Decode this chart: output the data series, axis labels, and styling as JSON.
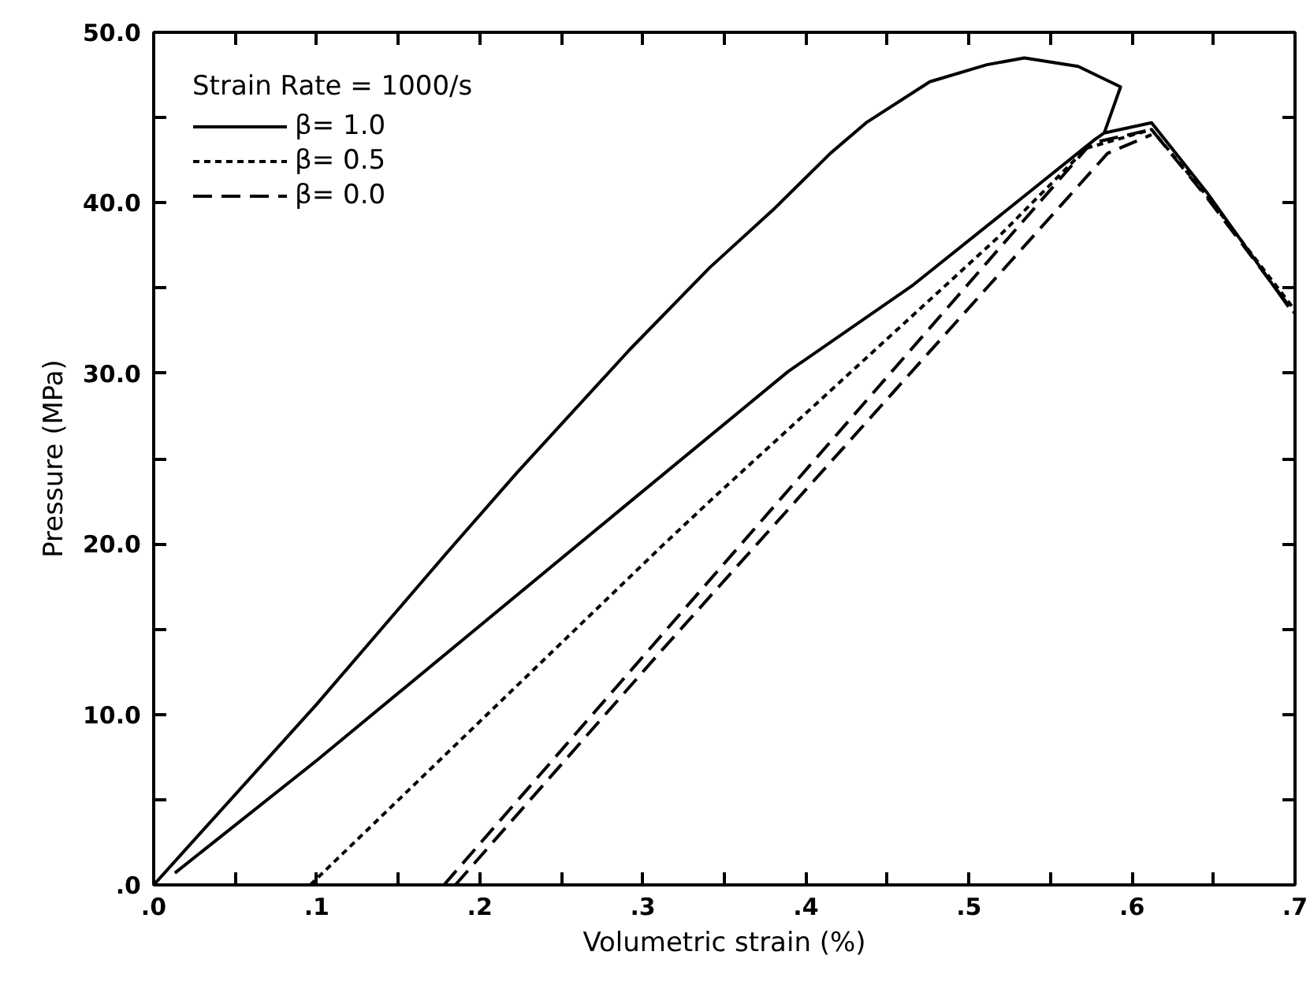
{
  "chart_data": {
    "type": "line",
    "xlabel": "Volumetric strain (%)",
    "ylabel": "Pressure (MPa)",
    "legend_title": "Strain Rate = 1000/s",
    "legend": "top left",
    "grid": false,
    "marker": "none",
    "xlim": [
      0,
      0.7
    ],
    "ylim": [
      0,
      50
    ],
    "xticks": [
      {
        "value": 0,
        "label": ".0"
      },
      {
        "value": 0.05,
        "label": null
      },
      {
        "value": 0.1,
        "label": ".1"
      },
      {
        "value": 0.15,
        "label": null
      },
      {
        "value": 0.2,
        "label": ".2"
      },
      {
        "value": 0.25,
        "label": null
      },
      {
        "value": 0.3,
        "label": ".3"
      },
      {
        "value": 0.35,
        "label": null
      },
      {
        "value": 0.4,
        "label": ".4"
      },
      {
        "value": 0.45,
        "label": null
      },
      {
        "value": 0.5,
        "label": ".5"
      },
      {
        "value": 0.55,
        "label": null
      },
      {
        "value": 0.6,
        "label": ".6"
      },
      {
        "value": 0.65,
        "label": null
      },
      {
        "value": 0.7,
        "label": ".7"
      }
    ],
    "yticks": [
      {
        "value": 0,
        "label": ".0"
      },
      {
        "value": 5,
        "label": null
      },
      {
        "value": 10,
        "label": "10.0"
      },
      {
        "value": 15,
        "label": null
      },
      {
        "value": 20,
        "label": "20.0"
      },
      {
        "value": 25,
        "label": null
      },
      {
        "value": 30,
        "label": "30.0"
      },
      {
        "value": 35,
        "label": null
      },
      {
        "value": 40,
        "label": "40.0"
      },
      {
        "value": 45,
        "label": null
      },
      {
        "value": 50,
        "label": "50.0"
      }
    ],
    "series": [
      {
        "name": "β= 1.0",
        "color": "#000000",
        "line_style": "solid",
        "x": [
          0,
          0.1,
          0.18,
          0.223,
          0.292,
          0.341,
          0.38,
          0.415,
          0.437,
          0.476,
          0.511,
          0.534,
          0.567,
          0.593,
          0.583,
          0.577,
          0.534,
          0.466,
          0.389,
          0.2925,
          0.1,
          0.013,
          null,
          0.583,
          0.612,
          0.646,
          0.696
        ],
        "values": [
          0,
          10.6,
          19.5,
          24.2,
          31.4,
          36.2,
          39.6,
          42.9,
          44.7,
          47.1,
          48.1,
          48.5,
          48.0,
          46.8,
          44.1,
          43.7,
          40.4,
          35.2,
          30.1,
          22.5,
          7.3,
          0.7,
          null,
          44.1,
          44.7,
          40.6,
          33.9
        ]
      },
      {
        "name": "β= 0.5",
        "color": "#000000",
        "line_style": "dotted",
        "x": [
          0.096,
          0.312,
          0.341,
          0.517,
          0.572,
          0.612,
          0.646,
          0.7
        ],
        "values": [
          0,
          19.9,
          22.5,
          37.9,
          43.2,
          44.3,
          40.4,
          33.7
        ]
      },
      {
        "name": "β= 0.0",
        "color": "#000000",
        "line_style": "dashed",
        "x": [
          0.178,
          0.312,
          0.575,
          0.612,
          0.646,
          0.7,
          null,
          0.185,
          0.312,
          0.585,
          0.612
        ],
        "values": [
          0,
          14.7,
          43.5,
          44.3,
          40.3,
          33.5,
          null,
          0,
          13.8,
          42.9,
          44.0
        ]
      }
    ]
  }
}
